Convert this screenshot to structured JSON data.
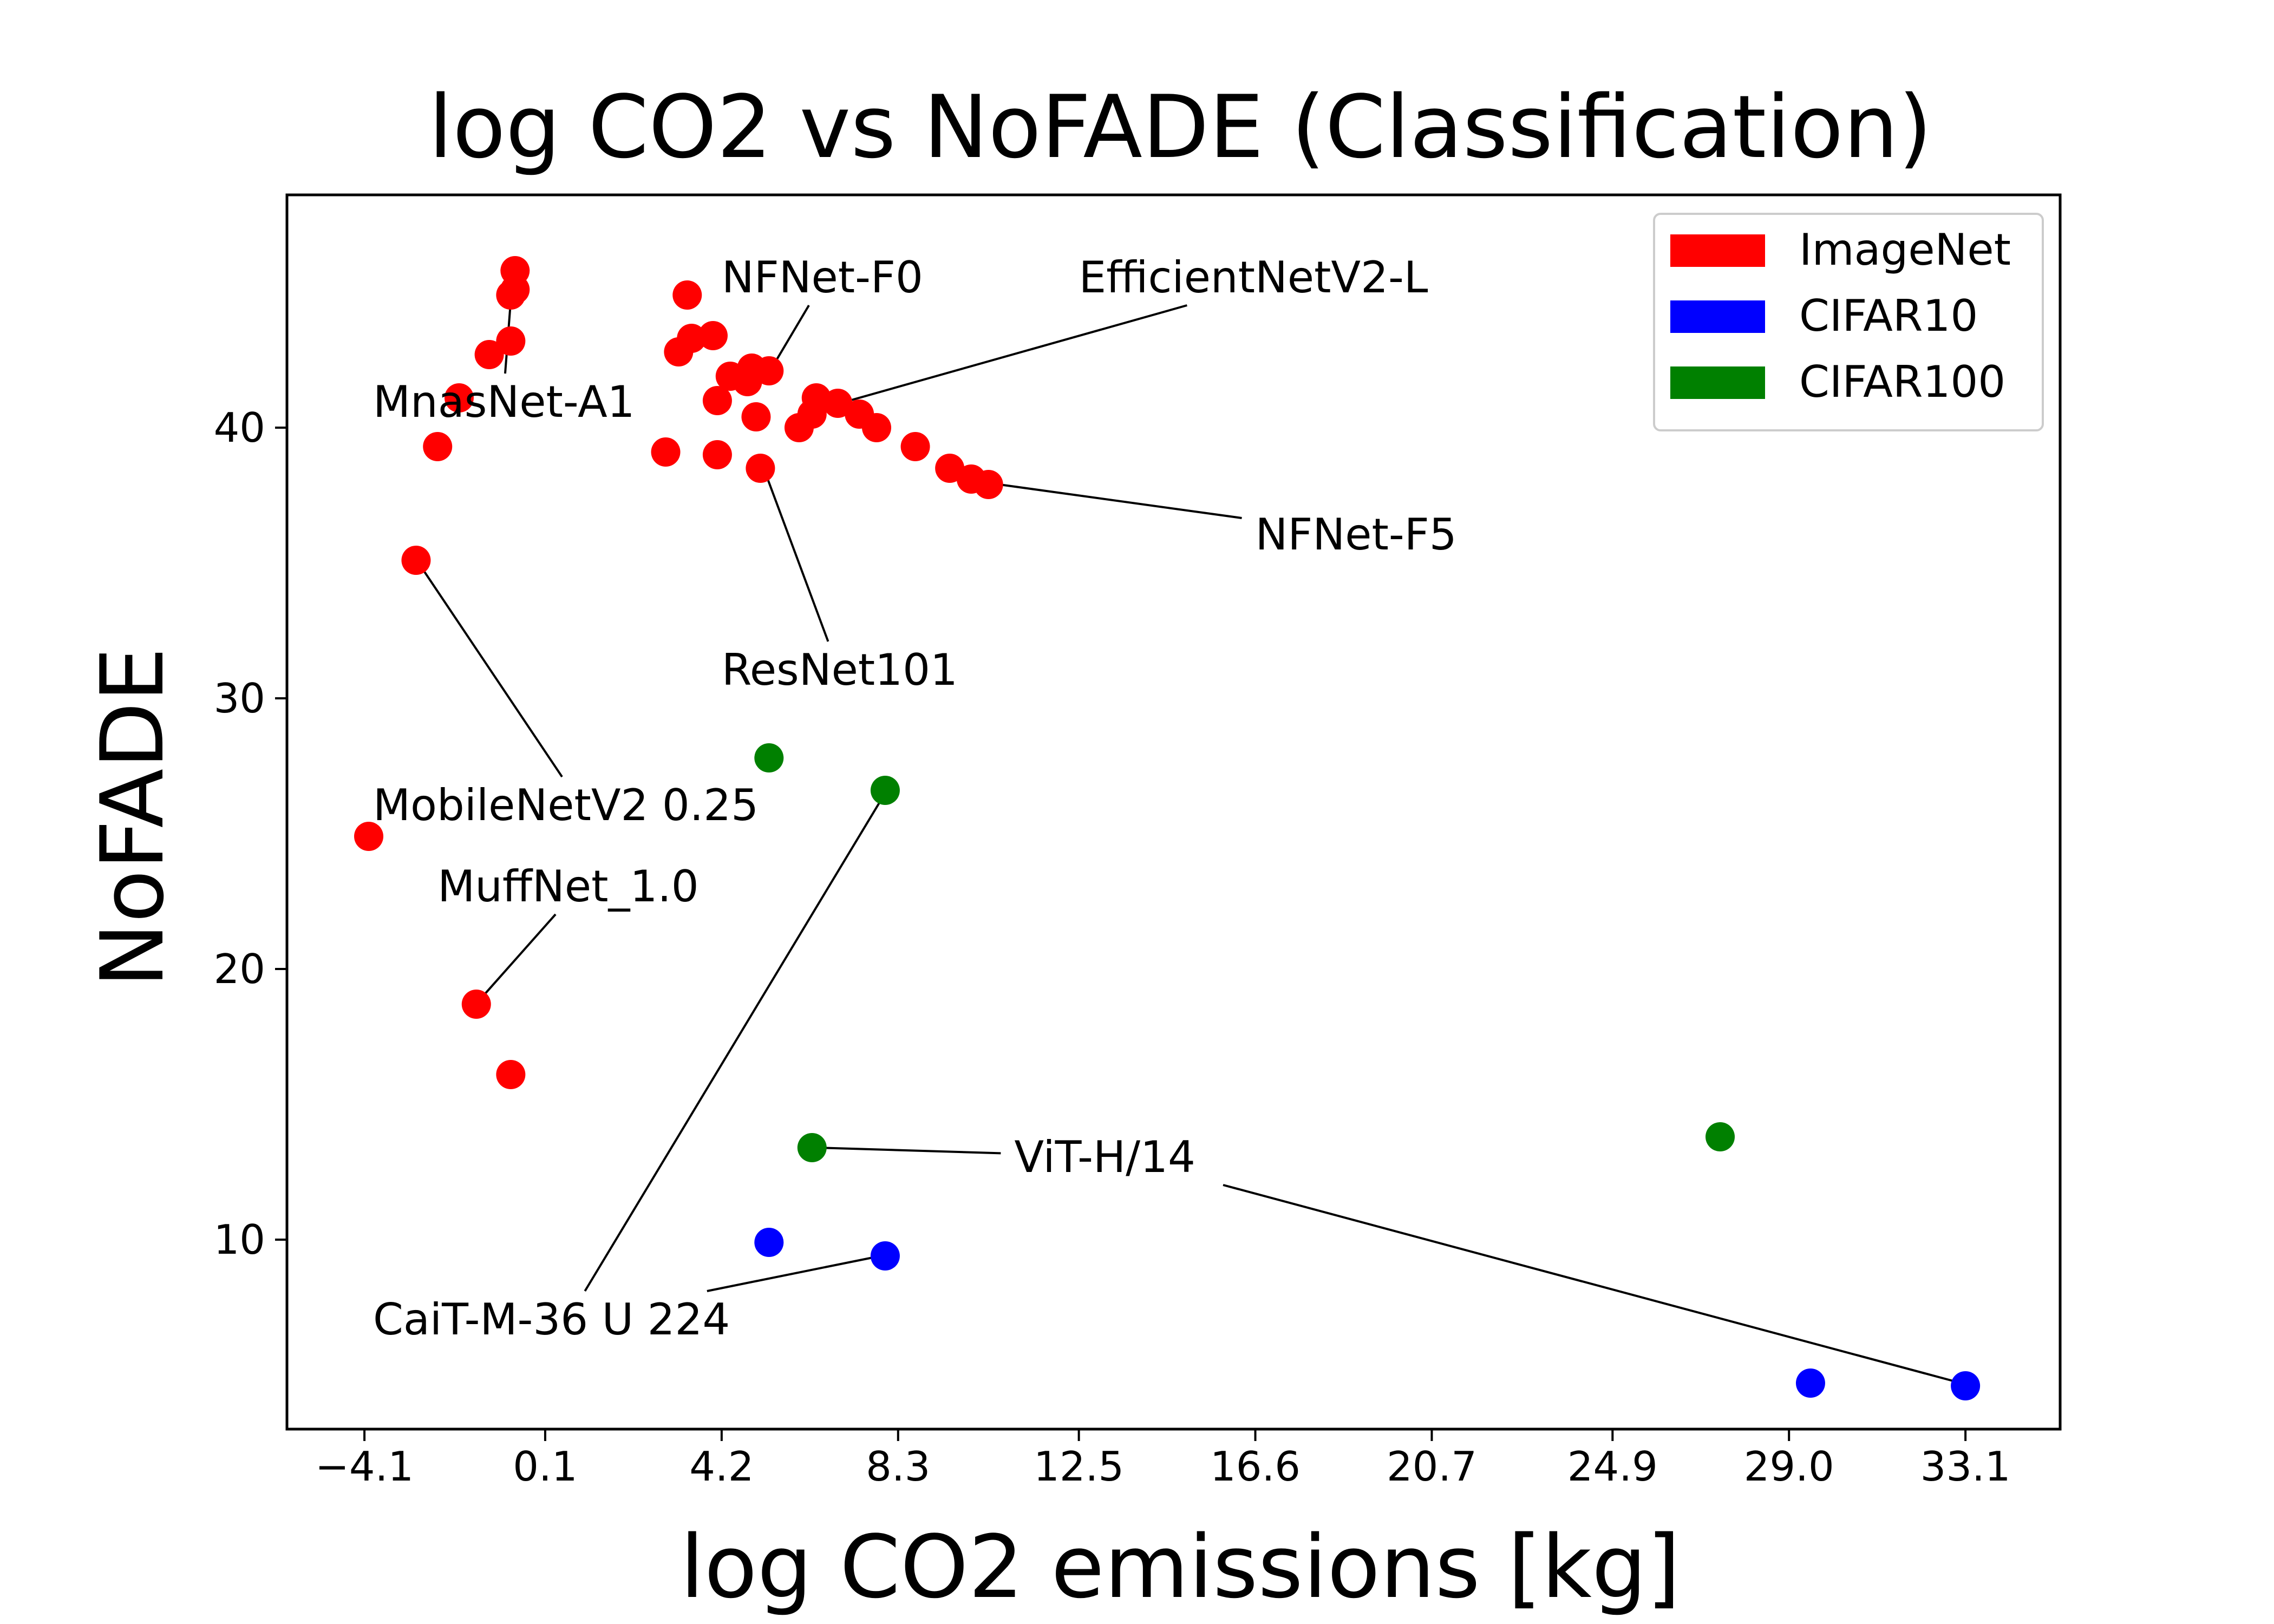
{
  "chart_data": {
    "type": "scatter",
    "title": "log CO2 vs NoFADE (Classification)",
    "xlabel": "log CO2 emissions [kg]",
    "ylabel": "NoFADE",
    "xlim": [
      -5.9,
      35.3
    ],
    "ylim": [
      3.0,
      48.6
    ],
    "x_ticks": [
      -4.1,
      0.1,
      4.2,
      8.3,
      12.5,
      16.6,
      20.7,
      24.9,
      29.0,
      33.1
    ],
    "x_tick_labels": [
      "−4.1",
      "0.1",
      "4.2",
      "8.3",
      "12.5",
      "16.6",
      "20.7",
      "24.9",
      "29.0",
      "33.1"
    ],
    "y_ticks": [
      10,
      20,
      30,
      40
    ],
    "y_tick_labels": [
      "10",
      "20",
      "30",
      "40"
    ],
    "legend_position": "top-right",
    "series": [
      {
        "name": "ImageNet",
        "color": "#ff0000",
        "points": [
          [
            -4.0,
            24.9
          ],
          [
            -2.9,
            35.1
          ],
          [
            -2.4,
            39.3
          ],
          [
            -1.9,
            41.1
          ],
          [
            -1.5,
            18.7
          ],
          [
            -1.2,
            42.7
          ],
          [
            -0.7,
            43.2
          ],
          [
            -0.7,
            16.1
          ],
          [
            -0.7,
            44.9
          ],
          [
            -0.6,
            45.1
          ],
          [
            -0.6,
            45.8
          ],
          [
            2.9,
            39.1
          ],
          [
            3.2,
            42.8
          ],
          [
            3.4,
            44.9
          ],
          [
            3.5,
            43.3
          ],
          [
            4.0,
            43.4
          ],
          [
            4.1,
            41.0
          ],
          [
            4.1,
            39.0
          ],
          [
            4.4,
            41.9
          ],
          [
            4.8,
            41.7
          ],
          [
            4.9,
            42.2
          ],
          [
            5.0,
            40.4
          ],
          [
            5.1,
            38.5
          ],
          [
            5.3,
            42.1
          ],
          [
            6.0,
            40.0
          ],
          [
            6.3,
            40.5
          ],
          [
            6.4,
            41.1
          ],
          [
            6.9,
            40.9
          ],
          [
            7.4,
            40.5
          ],
          [
            7.8,
            40.0
          ],
          [
            8.7,
            39.3
          ],
          [
            9.5,
            38.5
          ],
          [
            10.0,
            38.1
          ],
          [
            10.4,
            37.9
          ]
        ]
      },
      {
        "name": "CIFAR10",
        "color": "#0000ff",
        "points": [
          [
            5.3,
            9.9
          ],
          [
            8.0,
            9.4
          ],
          [
            29.5,
            4.7
          ],
          [
            33.1,
            4.6
          ]
        ]
      },
      {
        "name": "CIFAR100",
        "color": "#008000",
        "points": [
          [
            5.3,
            27.8
          ],
          [
            6.3,
            13.4
          ],
          [
            8.0,
            26.6
          ],
          [
            27.4,
            13.8
          ]
        ]
      }
    ],
    "annotations": [
      {
        "text": "MnasNet-A1",
        "label_at": [
          -3.9,
          40.4
        ],
        "points_to": [
          -0.7,
          44.7
        ]
      },
      {
        "text": "NFNet-F0",
        "label_at": [
          4.2,
          45.0
        ],
        "points_to": [
          5.4,
          42.3
        ]
      },
      {
        "text": "EfficientNetV2-L",
        "label_at": [
          12.5,
          45.0
        ],
        "points_to": [
          6.5,
          40.7
        ]
      },
      {
        "text": "NFNet-F5",
        "label_at": [
          16.6,
          35.5
        ],
        "points_to": [
          10.2,
          38.0
        ]
      },
      {
        "text": "ResNet101",
        "label_at": [
          4.2,
          30.5
        ],
        "points_to": [
          5.2,
          38.4
        ]
      },
      {
        "text": "MobileNetV2 0.25",
        "label_at": [
          -3.9,
          25.5
        ],
        "points_to": [
          -2.8,
          34.9
        ]
      },
      {
        "text": "MuffNet_1.0",
        "label_at": [
          -2.4,
          22.5
        ],
        "points_to": [
          -1.4,
          18.9
        ]
      },
      {
        "text": "ViT-H/14",
        "label_at": [
          11.0,
          12.5
        ],
        "points_to": [
          6.4,
          13.4
        ]
      },
      {
        "text": "ViT-H/14",
        "label_at": [
          11.0,
          12.5
        ],
        "points_to": [
          33.0,
          4.7
        ],
        "hide_label": true
      },
      {
        "text": "CaiT-M-36 U 224",
        "label_at": [
          -3.9,
          6.5
        ],
        "points_to": [
          8.0,
          26.5
        ]
      },
      {
        "text": "CaiT-M-36 U 224",
        "label_at": [
          -3.9,
          6.5
        ],
        "points_to": [
          7.9,
          9.4
        ],
        "hide_label": true
      }
    ]
  }
}
